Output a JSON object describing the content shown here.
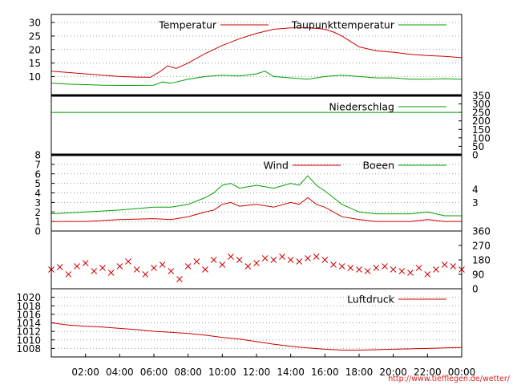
{
  "credit": "http://www.tiefflegen.de/wetter/",
  "colors": {
    "red": "#cc0000",
    "green": "#00a000",
    "grid": "#9a9a9a"
  },
  "x_axis": {
    "min_hour": 0,
    "max_hour": 24,
    "tick_labels": [
      "02:00",
      "04:00",
      "06:00",
      "08:00",
      "10:00",
      "12:00",
      "14:00",
      "16:00",
      "18:00",
      "20:00",
      "22:00",
      "00:00"
    ],
    "tick_hours": [
      2,
      4,
      6,
      8,
      10,
      12,
      14,
      16,
      18,
      20,
      22,
      24
    ]
  },
  "chart_data": [
    {
      "id": "temperature",
      "type": "line",
      "ylim": [
        3,
        33
      ],
      "y_ticks": [
        10,
        15,
        20,
        25,
        30
      ],
      "legend": [
        "Temperatur",
        "Taupunkttemperatur"
      ],
      "series": [
        {
          "name": "Temperatur",
          "color": "#cc0000",
          "x": [
            0,
            1,
            2,
            3,
            4,
            5,
            5.8,
            6.4,
            6.8,
            7.3,
            8,
            9,
            10,
            11,
            12,
            13,
            14,
            15,
            15.6,
            16,
            16.5,
            17,
            17.5,
            18,
            19,
            20,
            21,
            22,
            23,
            24
          ],
          "y": [
            12,
            11.5,
            11,
            10.5,
            10,
            9.8,
            9.7,
            12,
            14,
            13,
            15,
            18.5,
            21.5,
            24,
            26,
            27.5,
            28,
            28,
            27.8,
            27.5,
            26.5,
            25,
            23,
            21,
            19.5,
            19,
            18.2,
            17.8,
            17.5,
            17
          ]
        },
        {
          "name": "Taupunkttemperatur",
          "color": "#00a000",
          "x": [
            0,
            1,
            2,
            3,
            4,
            5,
            6,
            6.5,
            7,
            8,
            9,
            10,
            11,
            12,
            12.5,
            13,
            14,
            15,
            16,
            17,
            18,
            19,
            20,
            21,
            22,
            23,
            24
          ],
          "y": [
            7.5,
            7.2,
            7,
            6.8,
            6.7,
            6.7,
            6.8,
            8,
            7.5,
            9,
            10,
            10.5,
            10.2,
            11,
            12,
            10,
            9.5,
            9,
            10,
            10.5,
            10,
            9.5,
            9.5,
            9,
            9,
            9.2,
            9
          ]
        }
      ]
    },
    {
      "id": "precipitation",
      "type": "line",
      "ylim": [
        0,
        350
      ],
      "y_ticks": [
        0,
        50,
        100,
        150,
        200,
        250,
        300,
        350
      ],
      "y_ticks_side": "right",
      "legend": [
        "Niederschlag"
      ],
      "series": [
        {
          "name": "Niederschlag",
          "color": "#00a000",
          "x": [
            0,
            24
          ],
          "y": [
            250,
            250
          ]
        }
      ]
    },
    {
      "id": "wind",
      "type": "line",
      "ylim": [
        0,
        8
      ],
      "y_ticks": [
        0,
        1,
        2,
        3,
        4,
        5,
        6,
        7,
        8
      ],
      "y2_labels": [
        "3",
        "4"
      ],
      "y2_values": [
        3,
        4.4
      ],
      "legend": [
        "Wind",
        "Boeen"
      ],
      "series": [
        {
          "name": "Wind",
          "color": "#cc0000",
          "x": [
            0,
            2,
            4,
            6,
            7,
            8,
            9,
            9.5,
            10,
            10.5,
            11,
            12,
            13,
            14,
            14.5,
            15,
            15.5,
            16,
            16.5,
            17,
            18,
            19,
            20,
            21,
            22,
            23,
            24
          ],
          "y": [
            1,
            1,
            1.2,
            1.3,
            1.2,
            1.5,
            2,
            2.2,
            2.8,
            3,
            2.6,
            2.8,
            2.5,
            3,
            2.8,
            3.5,
            2.8,
            2.5,
            2,
            1.5,
            1.2,
            1,
            1,
            1,
            1.2,
            1,
            1
          ]
        },
        {
          "name": "Boeen",
          "color": "#00a000",
          "x": [
            0,
            2,
            4,
            6,
            7,
            8,
            9,
            9.5,
            10,
            10.5,
            11,
            12,
            13,
            14,
            14.5,
            15,
            15.5,
            16,
            16.5,
            17,
            18,
            19,
            20,
            21,
            22,
            23,
            24
          ],
          "y": [
            1.8,
            2,
            2.2,
            2.5,
            2.5,
            2.8,
            3.5,
            4,
            4.8,
            5,
            4.5,
            4.8,
            4.5,
            5,
            4.8,
            5.8,
            4.8,
            4.2,
            3.5,
            2.8,
            2,
            1.8,
            1.8,
            1.8,
            2,
            1.6,
            1.6
          ]
        }
      ]
    },
    {
      "id": "wind_direction",
      "type": "scatter",
      "ylim": [
        0,
        360
      ],
      "y_ticks": [
        0,
        90,
        180,
        270,
        360
      ],
      "y_ticks_side": "right",
      "marker": "x",
      "series": [
        {
          "color": "#cc0000",
          "x": [
            0,
            0.5,
            1,
            1.5,
            2,
            2.5,
            3,
            3.5,
            4,
            4.5,
            5,
            5.5,
            6,
            6.5,
            7,
            7.5,
            8,
            8.5,
            9,
            9.5,
            10,
            10.5,
            11,
            11.5,
            12,
            12.5,
            13,
            13.5,
            14,
            14.5,
            15,
            15.5,
            16,
            16.5,
            17,
            17.5,
            18,
            18.5,
            19,
            19.5,
            20,
            20.5,
            21,
            21.5,
            22,
            22.5,
            23,
            23.5,
            24
          ],
          "y": [
            120,
            135,
            90,
            140,
            160,
            110,
            130,
            100,
            140,
            170,
            120,
            90,
            130,
            150,
            110,
            60,
            140,
            170,
            120,
            180,
            150,
            200,
            180,
            140,
            160,
            190,
            180,
            200,
            180,
            170,
            190,
            200,
            180,
            150,
            140,
            130,
            120,
            110,
            130,
            140,
            120,
            110,
            100,
            130,
            90,
            120,
            150,
            140,
            120
          ]
        }
      ]
    },
    {
      "id": "pressure",
      "type": "line",
      "ylim": [
        1006,
        1022
      ],
      "y_ticks": [
        1008,
        1010,
        1012,
        1014,
        1016,
        1018,
        1020
      ],
      "legend": [
        "Luftdruck"
      ],
      "series": [
        {
          "name": "Luftdruck",
          "color": "#cc0000",
          "x": [
            0,
            1,
            2,
            3,
            4,
            5,
            6,
            7,
            8,
            9,
            10,
            11,
            12,
            13,
            14,
            15,
            16,
            17,
            18,
            19,
            20,
            21,
            22,
            23,
            24
          ],
          "y": [
            1014,
            1013.5,
            1013.2,
            1013,
            1012.7,
            1012.4,
            1012,
            1011.8,
            1011.5,
            1011.1,
            1010.6,
            1010.2,
            1009.6,
            1009,
            1008.5,
            1008.1,
            1007.8,
            1007.6,
            1007.6,
            1007.7,
            1007.8,
            1007.9,
            1008,
            1008.1,
            1008.2
          ]
        }
      ]
    }
  ]
}
